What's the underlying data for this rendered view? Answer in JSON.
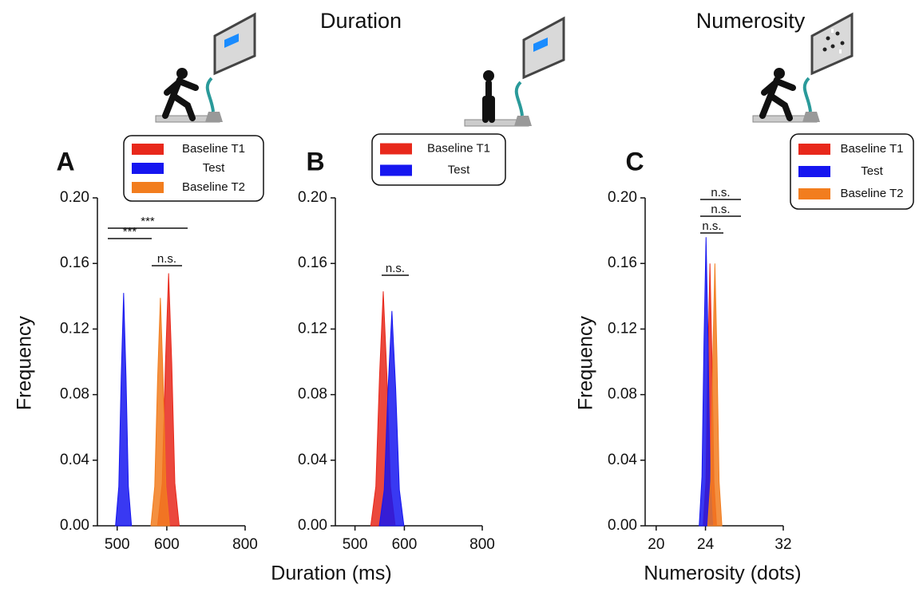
{
  "figure_titles": [
    "Duration",
    "Numerosity"
  ],
  "chart_data": [
    {
      "type": "area",
      "title": "A",
      "ylabel": "Frequency",
      "xscale": "log",
      "xlim": [
        465,
        800
      ],
      "xticks": [
        500,
        600,
        800
      ],
      "ylim": [
        0,
        0.2
      ],
      "yticks": [
        {
          "value": 0,
          "label": "0.00"
        },
        0.04,
        0.08,
        0.12,
        0.16,
        {
          "value": 0.2,
          "label": "0.20"
        }
      ],
      "series": [
        {
          "name": "Baseline T1",
          "color": "#e8281b",
          "x": [
            580,
            590,
            597,
            604,
            611,
            618,
            628
          ],
          "values": [
            0,
            0.026,
            0.099,
            0.154,
            0.099,
            0.026,
            0
          ]
        },
        {
          "name": "Test",
          "color": "#1616f0",
          "x": [
            497,
            503,
            507.5,
            512,
            516.5,
            521,
            527
          ],
          "values": [
            0,
            0.024,
            0.091,
            0.142,
            0.091,
            0.024,
            0
          ]
        },
        {
          "name": "Baseline T2",
          "color": "#f27d1e",
          "x": [
            566,
            574,
            580,
            586,
            592,
            598,
            606
          ],
          "values": [
            0,
            0.024,
            0.089,
            0.139,
            0.089,
            0.024,
            0
          ]
        }
      ],
      "annotations": [
        "***",
        "***",
        "n.s."
      ]
    },
    {
      "type": "area",
      "title": "B",
      "xlabel": "Duration (ms)",
      "xscale": "log",
      "xlim": [
        465,
        800
      ],
      "xticks": [
        500,
        600,
        800
      ],
      "ylim": [
        0,
        0.2
      ],
      "yticks": [
        {
          "value": 0,
          "label": "0.00"
        },
        0.04,
        0.08,
        0.12,
        0.16,
        {
          "value": 0.2,
          "label": "0.20"
        }
      ],
      "series": [
        {
          "name": "Baseline T1",
          "color": "#e8281b",
          "x": [
            530,
            540,
            547.5,
            555,
            562.5,
            570,
            580
          ],
          "values": [
            0,
            0.024,
            0.092,
            0.143,
            0.092,
            0.024,
            0
          ]
        },
        {
          "name": "Test",
          "color": "#1616f0",
          "x": [
            547,
            557,
            565,
            573,
            581,
            589,
            599
          ],
          "values": [
            0,
            0.022,
            0.084,
            0.131,
            0.084,
            0.022,
            0
          ]
        }
      ],
      "annotations": [
        "n.s."
      ]
    },
    {
      "type": "area",
      "title": "C",
      "ylabel": "Frequency",
      "xlabel": "Numerosity (dots)",
      "xscale": "log",
      "xlim": [
        19.2,
        32
      ],
      "xticks": [
        20,
        24,
        32
      ],
      "ylim": [
        0,
        0.2
      ],
      "yticks": [
        {
          "value": 0,
          "label": "0.00"
        },
        0.04,
        0.08,
        0.12,
        0.16,
        {
          "value": 0.2,
          "label": "0.20"
        }
      ],
      "series": [
        {
          "name": "Baseline T1",
          "color": "#e8281b",
          "x": [
            23.8,
            24.04,
            24.22,
            24.4,
            24.58,
            24.76,
            25.0
          ],
          "values": [
            0,
            0.027,
            0.102,
            0.16,
            0.102,
            0.027,
            0
          ]
        },
        {
          "name": "Test",
          "color": "#1616f0",
          "x": [
            23.45,
            23.69,
            23.87,
            24.05,
            24.23,
            24.41,
            24.65
          ],
          "values": [
            0,
            0.03,
            0.113,
            0.176,
            0.113,
            0.03,
            0
          ]
        },
        {
          "name": "Baseline T2",
          "color": "#f27d1e",
          "x": [
            24.2,
            24.46,
            24.655,
            24.85,
            25.045,
            25.24,
            25.5
          ],
          "values": [
            0,
            0.027,
            0.102,
            0.16,
            0.102,
            0.027,
            0
          ]
        }
      ],
      "annotations": [
        "n.s.",
        "n.s.",
        "n.s."
      ]
    }
  ]
}
